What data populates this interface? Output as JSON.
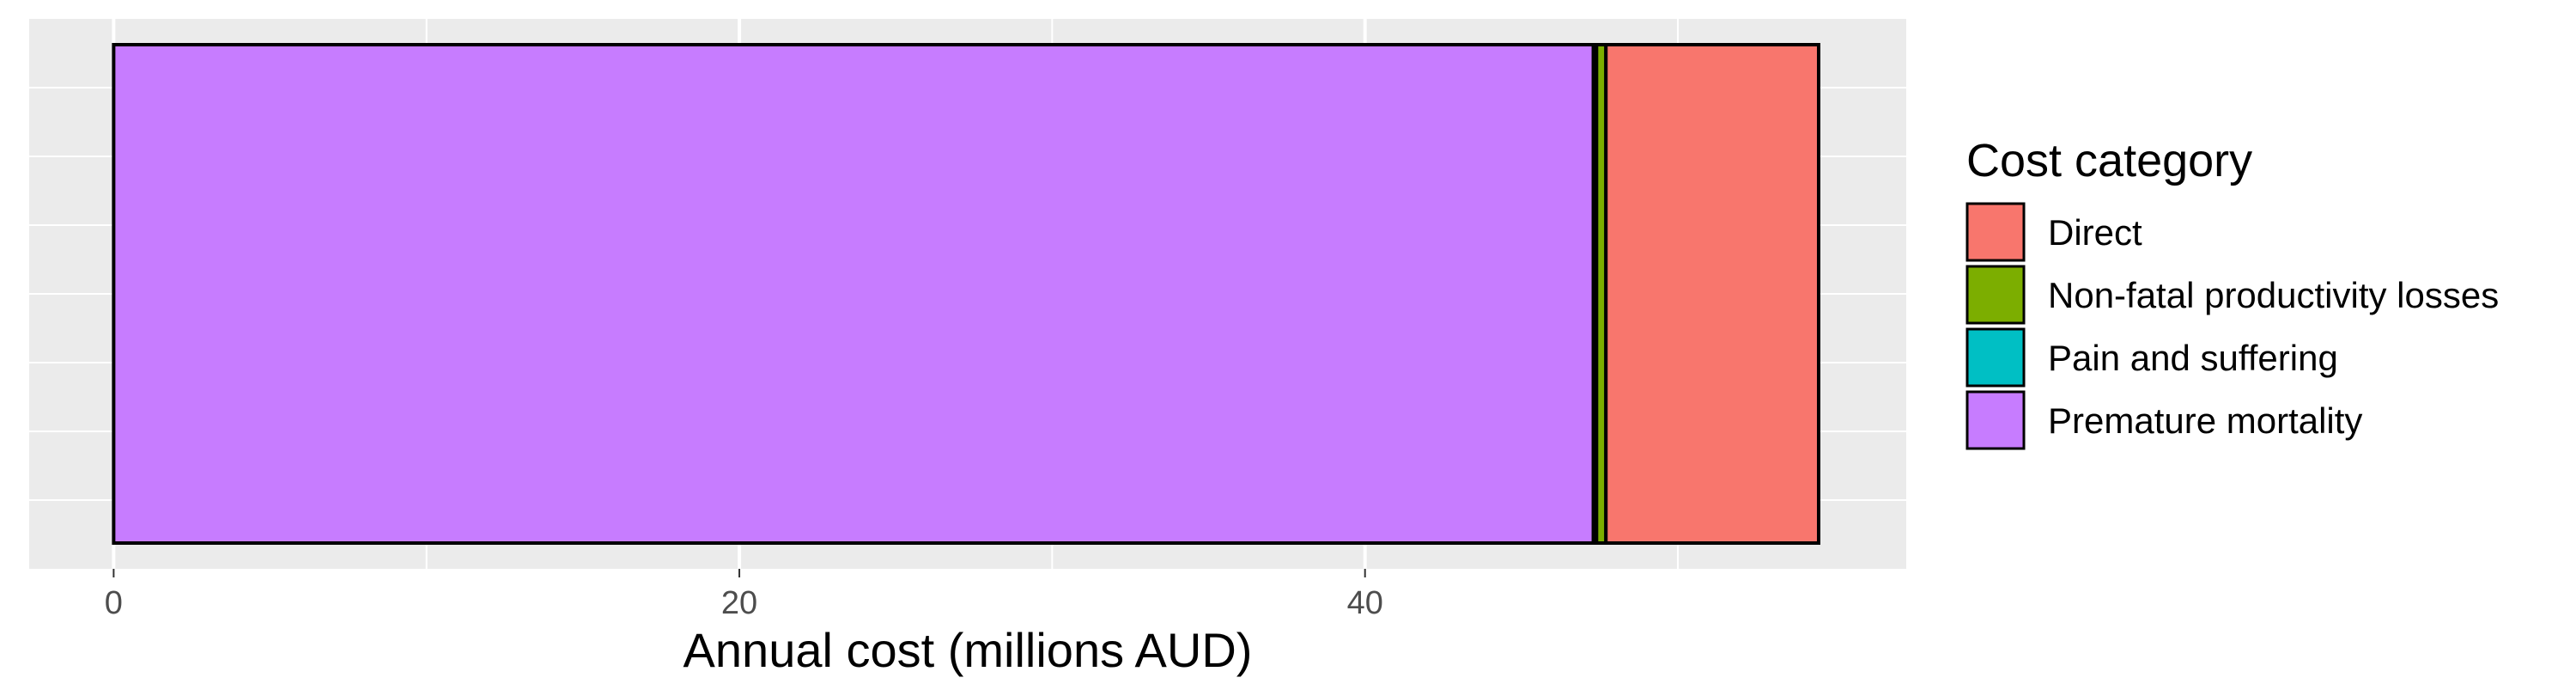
{
  "chart_data": {
    "type": "bar",
    "orientation": "horizontal",
    "stacked": true,
    "xlabel": "Annual cost (millions AUD)",
    "ylabel": "",
    "xlim": [
      -2.7,
      57.3
    ],
    "x_ticks": [
      0,
      20,
      40
    ],
    "x_minor_ticks": [
      10,
      30,
      50
    ],
    "grid": true,
    "legend_position": "right",
    "legend_title": "Cost category",
    "legend": [
      {
        "label": "Direct",
        "color": "#F8766D"
      },
      {
        "label": "Non-fatal productivity losses",
        "color": "#7CAE00"
      },
      {
        "label": "Pain and suffering",
        "color": "#00BFC4"
      },
      {
        "label": "Premature mortality",
        "color": "#C77CFF"
      }
    ],
    "segments": [
      {
        "category": "Premature mortality",
        "value": 47.3,
        "color": "#C77CFF"
      },
      {
        "category": "Pain and suffering",
        "value": 0.1,
        "color": "#00BFC4"
      },
      {
        "category": "Non-fatal productivity losses",
        "value": 0.3,
        "color": "#7CAE00"
      },
      {
        "category": "Direct",
        "value": 6.8,
        "color": "#F8766D"
      }
    ]
  }
}
